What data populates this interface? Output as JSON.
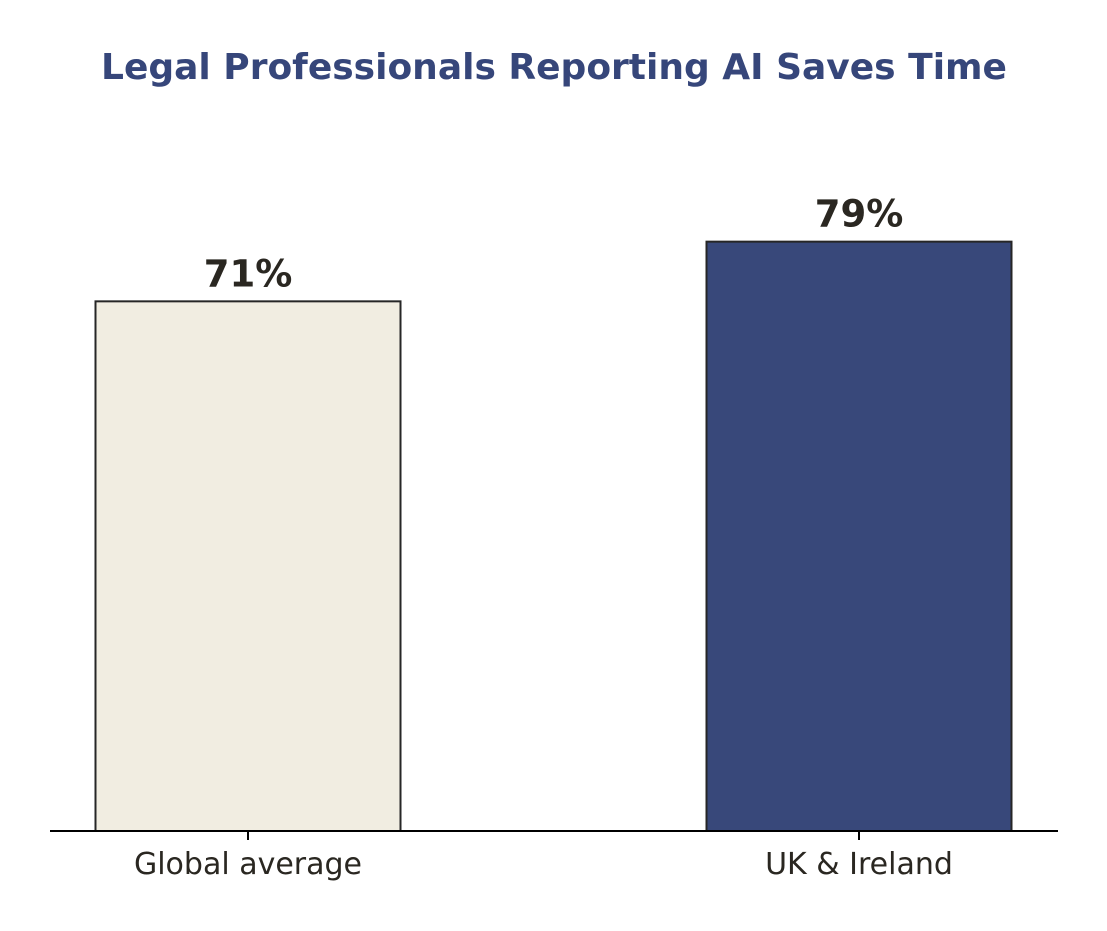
{
  "chart_data": {
    "type": "bar",
    "title": "Legal Professionals Reporting AI Saves Time",
    "categories": [
      "Global average",
      "UK & Ireland"
    ],
    "values": [
      71,
      79
    ],
    "value_labels": [
      "71%",
      "79%"
    ],
    "unit": "%",
    "bar_colors": [
      "#f1ede1",
      "#38487a"
    ],
    "bar_edge_color": "#262626",
    "title_color": "#36467a",
    "label_color": "#2a2721",
    "xlabel": "",
    "ylabel": "",
    "ylim": [
      0,
      100
    ],
    "grid": false,
    "legend": "none"
  }
}
